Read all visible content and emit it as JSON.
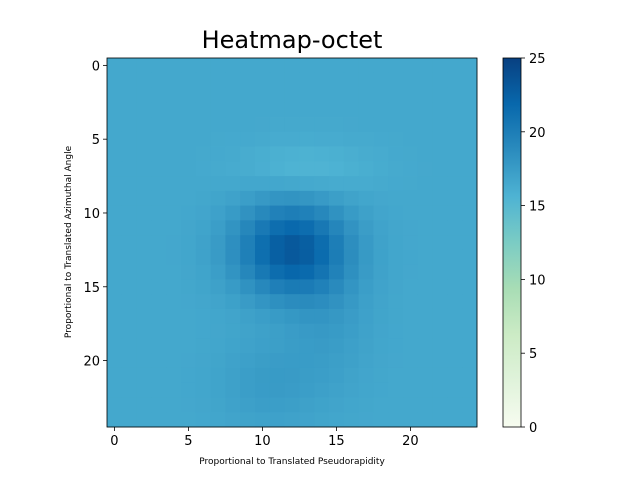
{
  "chart_data": {
    "type": "heatmap",
    "title": "Heatmap-octet",
    "xlabel": "Proportional to Translated Pseudorapidity",
    "ylabel": "Proportional to Translated Azimuthal Angle",
    "xlim": [
      -0.5,
      24.5
    ],
    "ylim": [
      24.5,
      -0.5
    ],
    "x_ticks": [
      0,
      5,
      10,
      15,
      20
    ],
    "y_ticks": [
      0,
      5,
      10,
      15,
      20
    ],
    "colorbar": {
      "colormap": "GnBu",
      "range": [
        0,
        25
      ],
      "ticks": [
        0,
        5,
        10,
        15,
        20,
        25
      ]
    },
    "grid": false,
    "rows": 25,
    "cols": 25,
    "background_value": 16.5,
    "blobs": [
      {
        "center_col": 12,
        "center_row": 12.5,
        "amplitude": 6.6,
        "sigma_col": 2.6,
        "sigma_row": 2.2
      },
      {
        "center_col": 10.5,
        "center_row": 21.5,
        "amplitude": 1.0,
        "sigma_col": 2.4,
        "sigma_row": 2.2
      },
      {
        "center_col": 14.5,
        "center_row": 17.5,
        "amplitude": 0.9,
        "sigma_col": 2.0,
        "sigma_row": 3.0
      },
      {
        "center_col": 13,
        "center_row": 7,
        "amplitude": -1.2,
        "sigma_col": 3.0,
        "sigma_row": 1.2
      }
    ]
  }
}
